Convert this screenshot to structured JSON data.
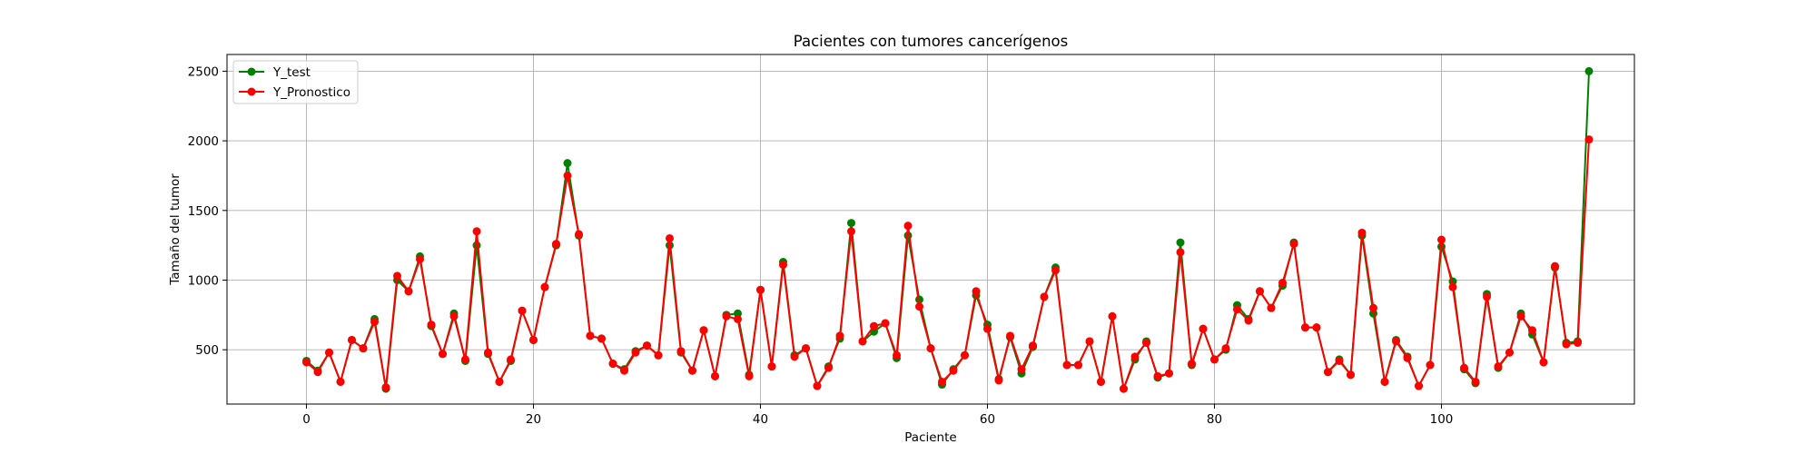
{
  "chart_data": {
    "type": "line",
    "title": "Pacientes con tumores cancerígenos",
    "xlabel": "Paciente",
    "ylabel": "Tamaño del tumor",
    "xlim": [
      -7,
      117
    ],
    "ylim": [
      110,
      2620
    ],
    "xticks": [
      0,
      20,
      40,
      60,
      80,
      100
    ],
    "yticks": [
      500,
      1000,
      1500,
      2000,
      2500
    ],
    "grid": true,
    "legend_position": "top-left",
    "series": [
      {
        "name": "Y_test",
        "color": "#008000",
        "values": [
          420,
          350,
          480,
          270,
          570,
          510,
          720,
          220,
          1000,
          920,
          1170,
          670,
          470,
          760,
          420,
          1250,
          470,
          270,
          420,
          780,
          570,
          950,
          1250,
          1840,
          1320,
          600,
          580,
          400,
          360,
          490,
          530,
          460,
          1250,
          480,
          350,
          640,
          310,
          750,
          760,
          320,
          930,
          380,
          1130,
          460,
          510,
          240,
          380,
          580,
          1410,
          560,
          630,
          690,
          440,
          1320,
          860,
          510,
          250,
          360,
          460,
          890,
          680,
          290,
          590,
          330,
          520,
          880,
          1090,
          390,
          390,
          560,
          270,
          740,
          220,
          430,
          560,
          300,
          330,
          1270,
          390,
          650,
          430,
          500,
          820,
          720,
          920,
          800,
          960,
          1270,
          660,
          660,
          340,
          430,
          320,
          1320,
          760,
          270,
          570,
          450,
          240,
          390,
          1240,
          990,
          360,
          260,
          900,
          370,
          480,
          760,
          610,
          410,
          1090,
          550,
          560,
          2500
        ]
      },
      {
        "name": "Y_Pronostico",
        "color": "#ff0000",
        "values": [
          410,
          340,
          480,
          270,
          570,
          510,
          700,
          230,
          1030,
          920,
          1150,
          680,
          470,
          740,
          430,
          1350,
          480,
          270,
          430,
          780,
          570,
          950,
          1260,
          1750,
          1330,
          600,
          580,
          400,
          350,
          480,
          530,
          460,
          1300,
          490,
          350,
          640,
          310,
          740,
          720,
          310,
          930,
          380,
          1110,
          450,
          510,
          240,
          370,
          600,
          1350,
          560,
          670,
          690,
          460,
          1390,
          810,
          510,
          270,
          350,
          460,
          920,
          650,
          280,
          600,
          360,
          530,
          880,
          1070,
          390,
          390,
          560,
          270,
          740,
          220,
          450,
          550,
          310,
          330,
          1200,
          400,
          650,
          430,
          510,
          790,
          710,
          920,
          800,
          980,
          1260,
          660,
          660,
          340,
          420,
          320,
          1340,
          800,
          270,
          560,
          440,
          240,
          390,
          1290,
          950,
          370,
          270,
          880,
          380,
          480,
          740,
          640,
          410,
          1100,
          540,
          550,
          2010
        ]
      }
    ]
  }
}
